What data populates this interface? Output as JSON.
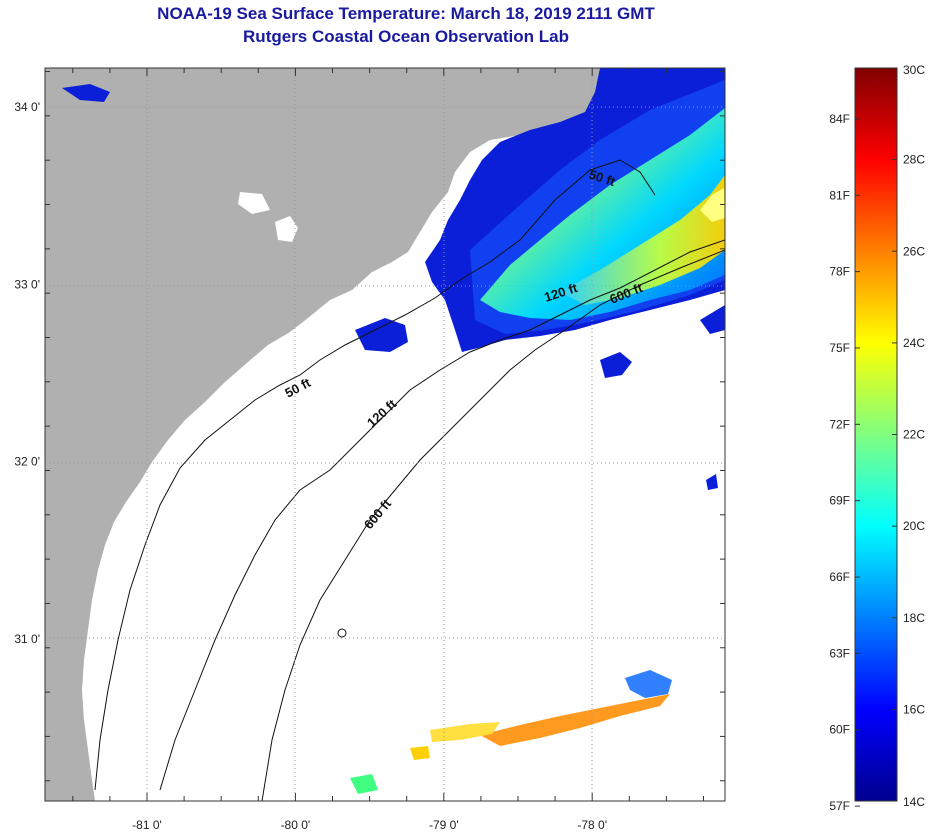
{
  "header": {
    "title": "NOAA-19 Sea Surface Temperature:  March 18, 2019 2111 GMT",
    "subtitle": "Rutgers Coastal Ocean Observation Lab"
  },
  "axes": {
    "x_ticks": [
      {
        "lon": -81,
        "label": "-81 0'"
      },
      {
        "lon": -80,
        "label": "-80 0'"
      },
      {
        "lon": -79,
        "label": "-79 0'"
      },
      {
        "lon": -78,
        "label": "-78 0'"
      }
    ],
    "y_ticks": [
      {
        "lat": 34,
        "label": "34 0'"
      },
      {
        "lat": 33,
        "label": "33 0'"
      },
      {
        "lat": 32,
        "label": "32 0'"
      },
      {
        "lat": 31,
        "label": "31 0'"
      }
    ]
  },
  "isobaths": [
    {
      "name": "50 ft",
      "label": "50 ft"
    },
    {
      "name": "120 ft",
      "label": "120 ft"
    },
    {
      "name": "600 ft",
      "label": "600 ft"
    }
  ],
  "colorbar": {
    "min_c": 14,
    "max_c": 30,
    "celsius_labels": [
      "30C",
      "28C",
      "26C",
      "24C",
      "22C",
      "20C",
      "18C",
      "16C",
      "14C"
    ],
    "fahrenheit_labels": [
      "84F",
      "81F",
      "78F",
      "75F",
      "72F",
      "69F",
      "66F",
      "63F",
      "60F",
      "57F"
    ],
    "colors": [
      "#00008f",
      "#0000ff",
      "#0080ff",
      "#00ffff",
      "#80ff80",
      "#ffff00",
      "#ff8000",
      "#ff0000",
      "#800000"
    ]
  },
  "colors": {
    "land": "#b0b0b0",
    "no_data": "#ffffff",
    "title": "#1a1aa0"
  }
}
